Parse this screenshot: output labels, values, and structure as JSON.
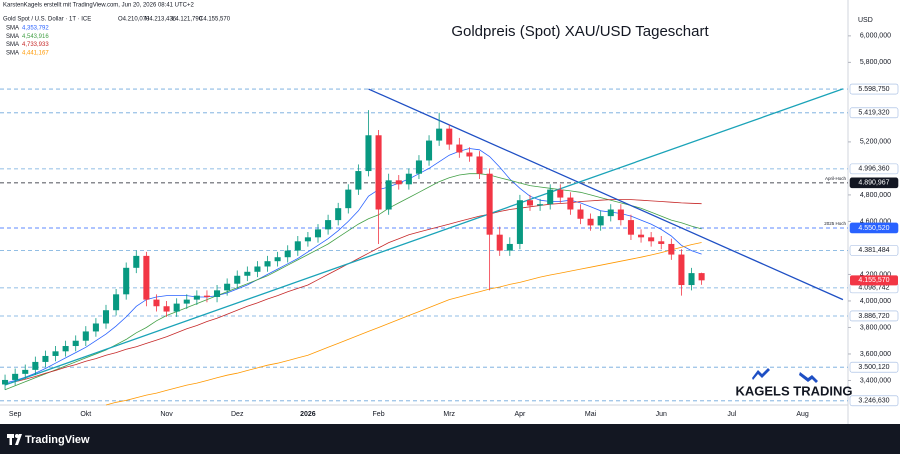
{
  "chart_data": {
    "type": "candlestick",
    "title": "Goldpreis (Spot) XAU/USD Tageschart",
    "credit": "KarstenKagels erstellt mit TradingView.com, Jun 20, 2026 08:41 UTC+2",
    "symbol": "Gold Spot / U.S. Dollar · 1T · ICE",
    "ohlc_text": [
      "O4.210,070",
      "H4.213,436",
      "L4.121,790",
      "C4.155,570"
    ],
    "currency": "USD",
    "brand": "KAGELS TRADING",
    "platform": "TradingView",
    "up_color": "#089981",
    "down_color": "#f23645",
    "categories": [
      null,
      "Sep",
      null,
      null,
      null,
      null,
      null,
      null,
      "Okt",
      null,
      null,
      null,
      null,
      null,
      null,
      null,
      "Nov",
      null,
      null,
      null,
      null,
      null,
      null,
      "Dez",
      null,
      null,
      null,
      null,
      null,
      null,
      "2026",
      null,
      null,
      null,
      null,
      null,
      null,
      "Feb",
      null,
      null,
      null,
      null,
      null,
      null,
      "Mrz",
      null,
      null,
      null,
      null,
      null,
      null,
      "Apr",
      null,
      null,
      null,
      null,
      null,
      null,
      "Mai",
      null,
      null,
      null,
      null,
      null,
      null,
      "Jun",
      null,
      null,
      null,
      null,
      null,
      null,
      "Jul",
      null,
      null,
      null,
      null,
      null,
      null,
      "Aug",
      null,
      null,
      null,
      null
    ],
    "open": [
      3370,
      3404,
      3450,
      3480,
      3540,
      3585,
      3620,
      3660,
      3700,
      3770,
      3830,
      3930,
      4050,
      4250,
      4340,
      4010,
      3960,
      3920,
      3980,
      4010,
      4040,
      4030,
      4080,
      4130,
      4190,
      4220,
      4260,
      4300,
      4330,
      4380,
      4450,
      4480,
      4540,
      4610,
      4700,
      4840,
      4980,
      5250,
      4690,
      4910,
      4880,
      4960,
      5060,
      5210,
      5300,
      5180,
      5120,
      5090,
      4960,
      4500,
      4380,
      4430,
      4760,
      4720,
      4730,
      4840,
      4780,
      4690,
      4620,
      4570,
      4640,
      4690,
      4610,
      4500,
      4480,
      4450,
      4430,
      4350,
      4120,
      4210.07,
      null,
      null,
      null,
      null,
      null,
      null,
      null,
      null,
      null,
      null,
      null,
      null,
      null,
      null
    ],
    "high": [
      3444,
      3490,
      3520,
      3580,
      3625,
      3660,
      3700,
      3740,
      3810,
      3870,
      3970,
      4090,
      4290,
      4380,
      4370,
      4050,
      4000,
      4020,
      4050,
      4080,
      4080,
      4120,
      4170,
      4230,
      4260,
      4300,
      4340,
      4370,
      4420,
      4490,
      4520,
      4580,
      4650,
      4740,
      4880,
      5030,
      5440,
      5290,
      4960,
      4950,
      5000,
      5100,
      5250,
      5420,
      5330,
      5230,
      5160,
      5130,
      5000,
      4560,
      4480,
      4800,
      4800,
      4770,
      4880,
      4880,
      4820,
      4730,
      4660,
      4680,
      4730,
      4730,
      4650,
      4540,
      4520,
      4490,
      4470,
      4390,
      4250,
      4213.436,
      null,
      null,
      null,
      null,
      null,
      null,
      null,
      null,
      null,
      null,
      null,
      null,
      null,
      null
    ],
    "low": [
      3330,
      3364,
      3410,
      3440,
      3500,
      3545,
      3580,
      3620,
      3660,
      3730,
      3790,
      3890,
      4010,
      4210,
      3960,
      3920,
      3880,
      3880,
      3940,
      3970,
      3990,
      3990,
      4040,
      4090,
      4150,
      4180,
      4220,
      4260,
      4290,
      4340,
      4410,
      4440,
      4500,
      4570,
      4660,
      4800,
      4940,
      4430,
      4650,
      4840,
      4840,
      4920,
      5020,
      5170,
      5140,
      5080,
      5050,
      4920,
      4080,
      4340,
      4340,
      4390,
      4680,
      4680,
      4690,
      4740,
      4650,
      4580,
      4530,
      4530,
      4600,
      4570,
      4460,
      4440,
      4410,
      4390,
      4310,
      4040,
      4080,
      4121.79,
      null,
      null,
      null,
      null,
      null,
      null,
      null,
      null,
      null,
      null,
      null,
      null,
      null,
      null
    ],
    "close": [
      3404,
      3450,
      3480,
      3540,
      3585,
      3620,
      3660,
      3700,
      3770,
      3830,
      3930,
      4050,
      4250,
      4340,
      4010,
      3960,
      3920,
      3980,
      4010,
      4040,
      4030,
      4080,
      4130,
      4190,
      4220,
      4260,
      4300,
      4330,
      4380,
      4450,
      4480,
      4540,
      4610,
      4700,
      4840,
      4980,
      5250,
      4690,
      4910,
      4880,
      4960,
      5060,
      5210,
      5300,
      5180,
      5120,
      5090,
      4960,
      4500,
      4380,
      4430,
      4760,
      4720,
      4730,
      4840,
      4780,
      4690,
      4620,
      4570,
      4640,
      4690,
      4610,
      4500,
      4480,
      4450,
      4430,
      4350,
      4120,
      4210,
      4155.57,
      null,
      null,
      null,
      null,
      null,
      null,
      null,
      null,
      null,
      null,
      null,
      null,
      null,
      null
    ],
    "last_label": "4.155,570",
    "series": [
      {
        "name": "SMA",
        "color": "#2962ff",
        "legend_value": "4,353,792",
        "values": [
          3380,
          3400,
          3425,
          3455,
          3490,
          3530,
          3570,
          3610,
          3650,
          3700,
          3750,
          3810,
          3880,
          3960,
          4010,
          4030,
          4040,
          4040,
          4040,
          4030,
          4030,
          4040,
          4060,
          4090,
          4120,
          4160,
          4200,
          4240,
          4280,
          4320,
          4370,
          4420,
          4470,
          4530,
          4600,
          4680,
          4790,
          4840,
          4860,
          4890,
          4920,
          4960,
          5000,
          5050,
          5100,
          5130,
          5150,
          5140,
          5090,
          5010,
          4920,
          4850,
          4790,
          4760,
          4750,
          4750,
          4760,
          4740,
          4710,
          4680,
          4670,
          4660,
          4640,
          4610,
          4580,
          4540,
          4490,
          4420,
          4380,
          4353.792,
          null,
          null,
          null,
          null,
          null,
          null,
          null,
          null,
          null,
          null,
          null,
          null,
          null,
          null
        ]
      },
      {
        "name": "SMA",
        "color": "#43a047",
        "legend_value": "4,543,916",
        "values": [
          3330,
          3360,
          3390,
          3420,
          3450,
          3480,
          3510,
          3540,
          3570,
          3600,
          3630,
          3670,
          3710,
          3760,
          3800,
          3850,
          3890,
          3920,
          3950,
          3980,
          4010,
          4040,
          4070,
          4100,
          4130,
          4160,
          4190,
          4230,
          4270,
          4310,
          4350,
          4390,
          4430,
          4480,
          4530,
          4580,
          4620,
          4650,
          4700,
          4740,
          4780,
          4820,
          4860,
          4900,
          4930,
          4950,
          4960,
          4960,
          4950,
          4930,
          4910,
          4890,
          4870,
          4860,
          4850,
          4840,
          4830,
          4820,
          4800,
          4780,
          4760,
          4740,
          4720,
          4700,
          4670,
          4640,
          4610,
          4590,
          4565,
          4543.916,
          null,
          null,
          null,
          null,
          null,
          null,
          null,
          null,
          null,
          null,
          null,
          null,
          null,
          null
        ]
      },
      {
        "name": "SMA",
        "color": "#c62828",
        "legend_value": "4,733,933",
        "values": [
          3370,
          3390,
          3410,
          3430,
          3455,
          3475,
          3500,
          3520,
          3545,
          3565,
          3590,
          3610,
          3635,
          3655,
          3680,
          3705,
          3730,
          3760,
          3790,
          3815,
          3845,
          3870,
          3900,
          3930,
          3960,
          3985,
          4015,
          4040,
          4070,
          4095,
          4120,
          4160,
          4200,
          4240,
          4280,
          4320,
          4360,
          4400,
          4440,
          4470,
          4500,
          4520,
          4540,
          4560,
          4580,
          4600,
          4620,
          4640,
          4655,
          4675,
          4690,
          4700,
          4710,
          4720,
          4730,
          4735,
          4740,
          4750,
          4755,
          4760,
          4765,
          4765,
          4765,
          4760,
          4755,
          4750,
          4745,
          4740,
          4737,
          4733.933,
          null,
          null,
          null,
          null,
          null,
          null,
          null,
          null,
          null,
          null,
          null,
          null,
          null,
          null
        ]
      },
      {
        "name": "SMA",
        "color": "#ff9800",
        "legend_value": "4,441,167",
        "values": [
          null,
          null,
          null,
          null,
          null,
          null,
          null,
          null,
          null,
          null,
          3215,
          3235,
          3250,
          3270,
          3290,
          3305,
          3325,
          3345,
          3365,
          3380,
          3400,
          3420,
          3440,
          3455,
          3475,
          3495,
          3515,
          3530,
          3550,
          3570,
          3590,
          3620,
          3650,
          3680,
          3710,
          3740,
          3770,
          3800,
          3830,
          3860,
          3890,
          3920,
          3950,
          3980,
          4010,
          4030,
          4050,
          4070,
          4090,
          4105,
          4125,
          4140,
          4160,
          4180,
          4196,
          4210,
          4225,
          4240,
          4255,
          4270,
          4285,
          4300,
          4315,
          4330,
          4347,
          4365,
          4385,
          4405,
          4425,
          4441.167,
          null,
          null,
          null,
          null,
          null,
          null,
          null,
          null,
          null,
          null,
          null,
          null,
          null,
          null
        ]
      }
    ],
    "trendlines": [
      {
        "color": "#1e4fc4",
        "start": [
          36,
          5598.75
        ],
        "end": [
          83,
          4010
        ]
      },
      {
        "color": "#1aa3b8",
        "start": [
          0,
          3366
        ],
        "end": [
          83,
          5600
        ]
      }
    ],
    "levels": [
      {
        "value": 5598.75,
        "label": "5.598,750"
      },
      {
        "value": 5419.32,
        "label": "5.419,320"
      },
      {
        "value": 4996.36,
        "label": "4.996,360"
      },
      {
        "value": 4890.967,
        "label": "4.890,967",
        "note": "April-Hoch",
        "color": "#131722"
      },
      {
        "value": 4550.52,
        "label": "4.550,520",
        "note": "2025 Hoch",
        "color": "#2962ff"
      },
      {
        "value": 4381.484,
        "label": "4.381,484"
      },
      {
        "value": 4098.742,
        "label": "4.098,742"
      },
      {
        "value": 3886.72,
        "label": "3.886,720"
      },
      {
        "value": 3500.12,
        "label": "3.500,120"
      },
      {
        "value": 3246.63,
        "label": "3.246,630"
      }
    ],
    "ylim": [
      3215,
      6180
    ],
    "yticks": [
      {
        "value": 6000,
        "label": "6,000,000"
      },
      {
        "value": 5800,
        "label": "5,800,000"
      },
      {
        "value": 5200,
        "label": "5,200,000"
      },
      {
        "value": 4800,
        "label": "4,800,000"
      },
      {
        "value": 4600,
        "label": "4,600,000"
      },
      {
        "value": 4200,
        "label": "4,200,000"
      },
      {
        "value": 4000,
        "label": "4,000,000"
      },
      {
        "value": 3800,
        "label": "3,800,000"
      },
      {
        "value": 3600,
        "label": "3,600,000"
      },
      {
        "value": 3400,
        "label": "3,400,000"
      }
    ],
    "grid": false
  }
}
